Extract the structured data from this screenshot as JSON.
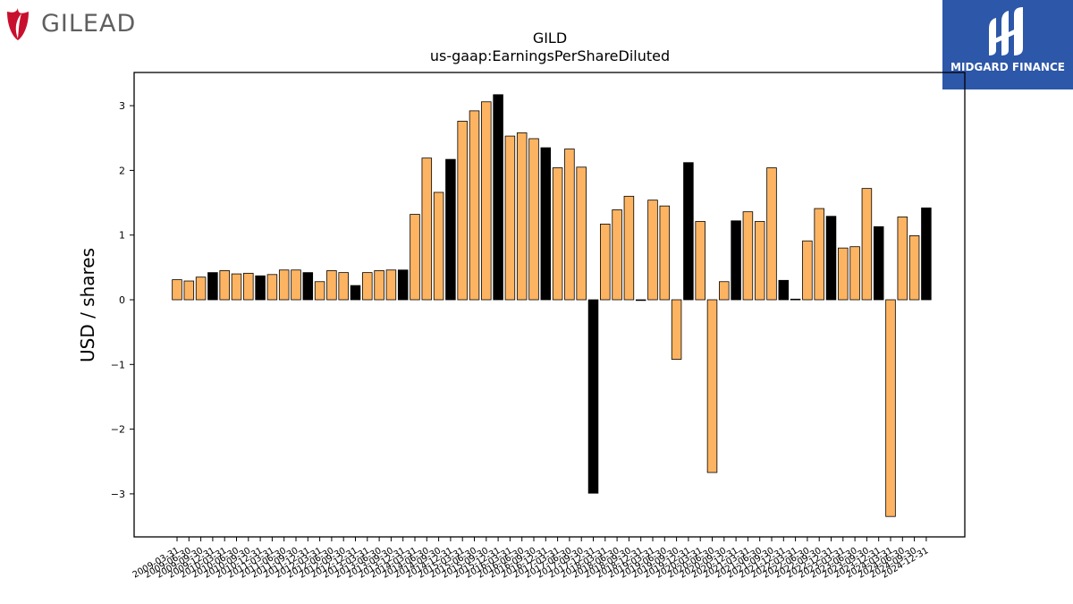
{
  "brand": {
    "name": "GILEAD",
    "logo_icon": "gilead-leaf-icon",
    "accent": "#c8102e"
  },
  "partner": {
    "name": "MIDGARD FINANCE",
    "logo_icon": "midgard-m-icon",
    "background": "#2d57a8"
  },
  "chart_data": {
    "type": "bar",
    "title": "GILD",
    "subtitle": "us-gaap:EarningsPerShareDiluted",
    "xlabel": "",
    "ylabel": "USD / shares",
    "ylim": [
      -3.6,
      3.5
    ],
    "yticks": [
      3,
      2,
      1,
      0,
      -1,
      -2,
      -3
    ],
    "ytick_labels": [
      "3",
      "2",
      "1",
      "0",
      "−1",
      "−2",
      "−3"
    ],
    "grid": false,
    "colors": {
      "quarter": "#fdb462",
      "annual": "#000000",
      "edge": "#000000"
    },
    "categories": [
      "2009-03-31",
      "2009-06-30",
      "2009-09-30",
      "2009-12-31",
      "2010-03-31",
      "2010-06-30",
      "2010-09-30",
      "2010-12-31",
      "2011-03-31",
      "2011-06-30",
      "2011-09-30",
      "2011-12-31",
      "2012-03-31",
      "2012-06-30",
      "2012-09-30",
      "2012-12-31",
      "2013-03-31",
      "2013-06-30",
      "2013-09-30",
      "2013-12-31",
      "2014-03-31",
      "2014-06-30",
      "2014-09-30",
      "2014-12-31",
      "2015-03-31",
      "2015-06-30",
      "2015-09-30",
      "2015-12-31",
      "2016-03-31",
      "2016-06-30",
      "2016-09-30",
      "2016-12-31",
      "2017-03-31",
      "2017-06-30",
      "2017-09-30",
      "2017-12-31",
      "2018-03-31",
      "2018-06-30",
      "2018-09-30",
      "2018-12-31",
      "2019-03-31",
      "2019-06-30",
      "2019-09-30",
      "2019-12-31",
      "2020-03-31",
      "2020-06-30",
      "2020-09-30",
      "2020-12-31",
      "2021-03-31",
      "2021-06-30",
      "2021-09-30",
      "2021-12-31",
      "2022-03-31",
      "2022-06-30",
      "2022-09-30",
      "2022-12-31",
      "2023-03-31",
      "2023-06-30",
      "2023-09-30",
      "2023-12-31",
      "2024-03-31",
      "2024-06-30",
      "2024-09-30",
      "2024-12-31"
    ],
    "values": [
      0.31,
      0.29,
      0.35,
      0.42,
      0.45,
      0.4,
      0.41,
      0.37,
      0.39,
      0.46,
      0.46,
      0.42,
      0.28,
      0.45,
      0.42,
      0.22,
      0.42,
      0.45,
      0.46,
      0.46,
      1.32,
      2.19,
      1.66,
      2.17,
      2.76,
      2.92,
      3.06,
      3.17,
      2.53,
      2.58,
      2.49,
      2.35,
      2.04,
      2.33,
      2.05,
      -2.99,
      1.17,
      1.39,
      1.6,
      0.0,
      1.54,
      1.45,
      -0.92,
      2.12,
      1.21,
      -2.67,
      0.28,
      1.22,
      1.36,
      1.21,
      2.04,
      0.3,
      0.01,
      0.91,
      1.41,
      1.29,
      0.8,
      0.82,
      1.72,
      1.13,
      -3.35,
      1.28,
      0.99,
      1.42
    ],
    "annual_flags": [
      0,
      0,
      0,
      1,
      0,
      0,
      0,
      1,
      0,
      0,
      0,
      1,
      0,
      0,
      0,
      1,
      0,
      0,
      0,
      1,
      0,
      0,
      0,
      1,
      0,
      0,
      0,
      1,
      0,
      0,
      0,
      1,
      0,
      0,
      0,
      1,
      0,
      0,
      0,
      1,
      0,
      0,
      0,
      1,
      0,
      0,
      0,
      1,
      0,
      0,
      0,
      1,
      0,
      0,
      0,
      1,
      0,
      0,
      0,
      1,
      0,
      0,
      0,
      1
    ]
  }
}
